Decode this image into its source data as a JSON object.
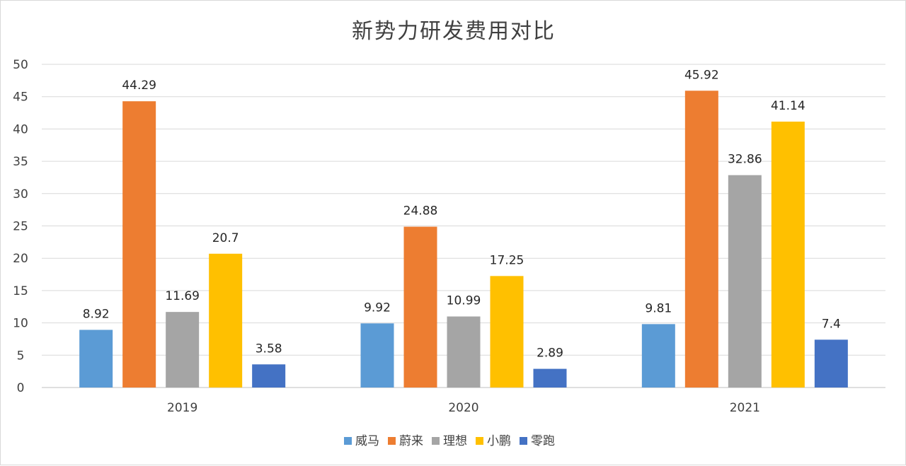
{
  "chart_data": {
    "type": "bar",
    "title": "新势力研发费用对比",
    "categories": [
      "2019",
      "2020",
      "2021"
    ],
    "series": [
      {
        "name": "威马",
        "color": "#5b9bd5",
        "values": [
          8.92,
          9.92,
          9.81
        ],
        "labels": [
          "8.92",
          "9.92",
          "9.81"
        ]
      },
      {
        "name": "蔚来",
        "color": "#ed7d31",
        "values": [
          44.29,
          24.88,
          45.92
        ],
        "labels": [
          "44.29",
          "24.88",
          "45.92"
        ]
      },
      {
        "name": "理想",
        "color": "#a5a5a5",
        "values": [
          11.69,
          10.99,
          32.86
        ],
        "labels": [
          "11.69",
          "10.99",
          "32.86"
        ]
      },
      {
        "name": "小鹏",
        "color": "#ffc000",
        "values": [
          20.7,
          17.25,
          41.14
        ],
        "labels": [
          "20.7",
          "17.25",
          "41.14"
        ]
      },
      {
        "name": "零跑",
        "color": "#4472c4",
        "values": [
          3.58,
          2.89,
          7.4
        ],
        "labels": [
          "3.58",
          "2.89",
          "7.4"
        ]
      }
    ],
    "ylim": [
      0,
      50
    ],
    "yticks": [
      "0",
      "5",
      "10",
      "15",
      "20",
      "25",
      "30",
      "35",
      "40",
      "45",
      "50"
    ],
    "grid": true,
    "legend_position": "bottom"
  }
}
